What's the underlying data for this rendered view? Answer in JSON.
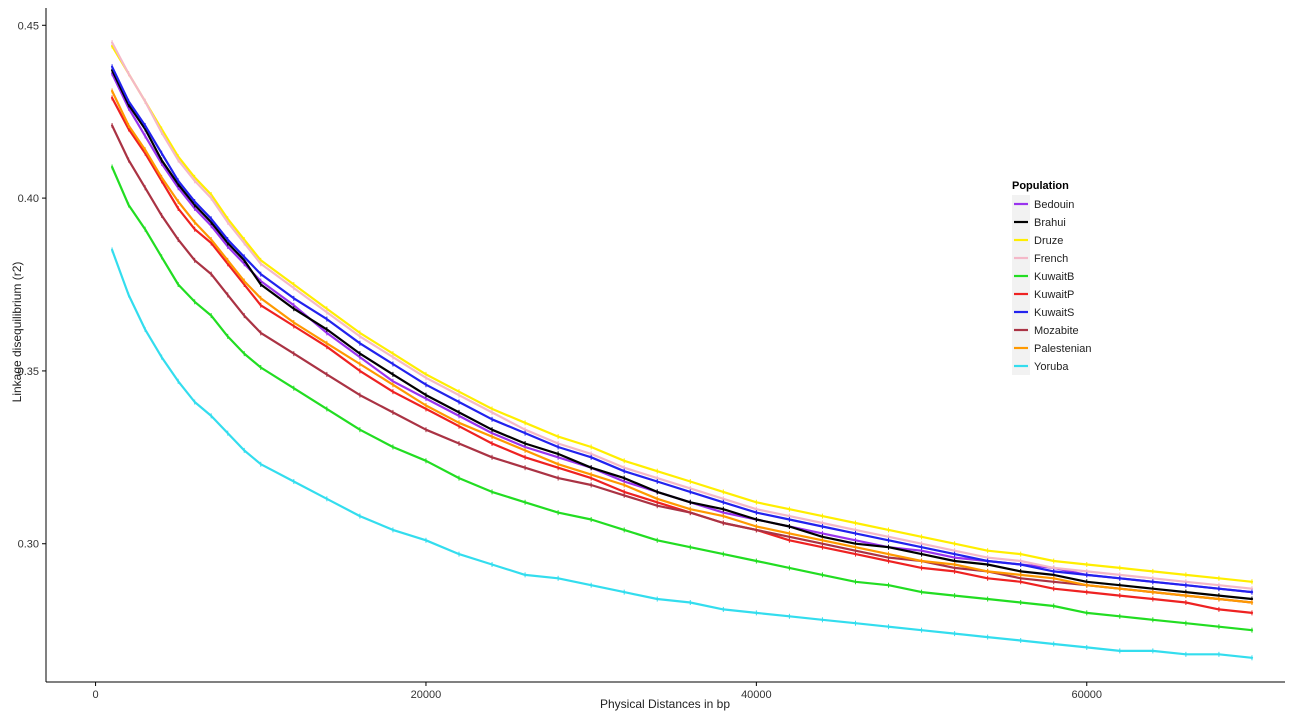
{
  "chart_data": {
    "type": "line",
    "title": "",
    "xlabel": "Physical Distances in bp",
    "ylabel": "Linkage disequilibrium (r2)",
    "xlim": [
      -3000,
      72000
    ],
    "ylim": [
      0.26,
      0.455
    ],
    "x_ticks": [
      0,
      20000,
      40000,
      60000
    ],
    "x_tick_labels": [
      "0",
      "20000",
      "40000",
      "60000"
    ],
    "y_ticks": [
      0.3,
      0.35,
      0.4,
      0.45
    ],
    "y_tick_labels": [
      "0.30",
      "0.35",
      "0.40",
      "0.45"
    ],
    "grid": false,
    "legend": {
      "title": "Population",
      "placement": "right"
    },
    "x": [
      1000,
      2000,
      3000,
      4000,
      5000,
      6000,
      7000,
      8000,
      9000,
      10000,
      12000,
      14000,
      16000,
      18000,
      20000,
      22000,
      24000,
      26000,
      28000,
      30000,
      32000,
      34000,
      36000,
      38000,
      40000,
      42000,
      44000,
      46000,
      48000,
      50000,
      52000,
      54000,
      56000,
      58000,
      60000,
      62000,
      64000,
      66000,
      68000,
      70000
    ],
    "series": [
      {
        "name": "Bedouin",
        "color": "#9933ee",
        "values": [
          0.436,
          0.426,
          0.418,
          0.41,
          0.403,
          0.397,
          0.392,
          0.386,
          0.381,
          0.376,
          0.369,
          0.361,
          0.354,
          0.347,
          0.342,
          0.337,
          0.332,
          0.328,
          0.325,
          0.322,
          0.318,
          0.315,
          0.312,
          0.309,
          0.307,
          0.305,
          0.303,
          0.301,
          0.299,
          0.298,
          0.296,
          0.295,
          0.294,
          0.293,
          0.291,
          0.29,
          0.289,
          0.288,
          0.287,
          0.286
        ]
      },
      {
        "name": "Brahui",
        "color": "#000000",
        "values": [
          0.437,
          0.427,
          0.42,
          0.411,
          0.404,
          0.398,
          0.393,
          0.387,
          0.382,
          0.375,
          0.368,
          0.362,
          0.355,
          0.349,
          0.343,
          0.338,
          0.333,
          0.329,
          0.326,
          0.322,
          0.319,
          0.315,
          0.312,
          0.31,
          0.307,
          0.305,
          0.302,
          0.3,
          0.299,
          0.297,
          0.295,
          0.294,
          0.292,
          0.291,
          0.289,
          0.288,
          0.287,
          0.286,
          0.285,
          0.284
        ]
      },
      {
        "name": "Druze",
        "color": "#ffee00",
        "values": [
          0.444,
          0.436,
          0.428,
          0.42,
          0.412,
          0.406,
          0.401,
          0.394,
          0.388,
          0.382,
          0.375,
          0.368,
          0.361,
          0.355,
          0.349,
          0.344,
          0.339,
          0.335,
          0.331,
          0.328,
          0.324,
          0.321,
          0.318,
          0.315,
          0.312,
          0.31,
          0.308,
          0.306,
          0.304,
          0.302,
          0.3,
          0.298,
          0.297,
          0.295,
          0.294,
          0.293,
          0.292,
          0.291,
          0.29,
          0.289
        ]
      },
      {
        "name": "French",
        "color": "#f4b8c8",
        "values": [
          0.445,
          0.436,
          0.428,
          0.419,
          0.411,
          0.405,
          0.4,
          0.393,
          0.387,
          0.381,
          0.374,
          0.367,
          0.36,
          0.354,
          0.348,
          0.343,
          0.338,
          0.333,
          0.329,
          0.326,
          0.322,
          0.319,
          0.316,
          0.313,
          0.31,
          0.308,
          0.306,
          0.304,
          0.302,
          0.3,
          0.298,
          0.296,
          0.295,
          0.293,
          0.292,
          0.291,
          0.29,
          0.289,
          0.288,
          0.287
        ]
      },
      {
        "name": "KuwaitB",
        "color": "#22dd22",
        "values": [
          0.409,
          0.398,
          0.391,
          0.383,
          0.375,
          0.37,
          0.366,
          0.36,
          0.355,
          0.351,
          0.345,
          0.339,
          0.333,
          0.328,
          0.324,
          0.319,
          0.315,
          0.312,
          0.309,
          0.307,
          0.304,
          0.301,
          0.299,
          0.297,
          0.295,
          0.293,
          0.291,
          0.289,
          0.288,
          0.286,
          0.285,
          0.284,
          0.283,
          0.282,
          0.28,
          0.279,
          0.278,
          0.277,
          0.276,
          0.275
        ]
      },
      {
        "name": "KuwaitP",
        "color": "#ee2222",
        "values": [
          0.429,
          0.42,
          0.413,
          0.405,
          0.397,
          0.391,
          0.387,
          0.381,
          0.375,
          0.369,
          0.363,
          0.357,
          0.35,
          0.344,
          0.339,
          0.334,
          0.329,
          0.325,
          0.322,
          0.319,
          0.315,
          0.312,
          0.309,
          0.306,
          0.304,
          0.301,
          0.299,
          0.297,
          0.295,
          0.293,
          0.292,
          0.29,
          0.289,
          0.287,
          0.286,
          0.285,
          0.284,
          0.283,
          0.281,
          0.28
        ]
      },
      {
        "name": "KuwaitS",
        "color": "#2222ee",
        "values": [
          0.438,
          0.428,
          0.421,
          0.413,
          0.405,
          0.399,
          0.394,
          0.388,
          0.383,
          0.378,
          0.371,
          0.365,
          0.358,
          0.352,
          0.346,
          0.341,
          0.336,
          0.332,
          0.328,
          0.325,
          0.321,
          0.318,
          0.315,
          0.312,
          0.309,
          0.307,
          0.305,
          0.303,
          0.301,
          0.299,
          0.297,
          0.295,
          0.294,
          0.292,
          0.291,
          0.29,
          0.289,
          0.288,
          0.287,
          0.286
        ]
      },
      {
        "name": "Mozabite",
        "color": "#aa3344",
        "values": [
          0.421,
          0.411,
          0.403,
          0.395,
          0.388,
          0.382,
          0.378,
          0.372,
          0.366,
          0.361,
          0.355,
          0.349,
          0.343,
          0.338,
          0.333,
          0.329,
          0.325,
          0.322,
          0.319,
          0.317,
          0.314,
          0.311,
          0.309,
          0.306,
          0.304,
          0.302,
          0.3,
          0.298,
          0.296,
          0.295,
          0.293,
          0.292,
          0.29,
          0.289,
          0.288,
          0.287,
          0.286,
          0.285,
          0.284,
          0.283
        ]
      },
      {
        "name": "Palestenian",
        "color": "#ff9900",
        "values": [
          0.431,
          0.421,
          0.414,
          0.406,
          0.399,
          0.393,
          0.388,
          0.382,
          0.376,
          0.371,
          0.364,
          0.358,
          0.352,
          0.346,
          0.34,
          0.335,
          0.331,
          0.327,
          0.323,
          0.32,
          0.317,
          0.313,
          0.31,
          0.308,
          0.305,
          0.303,
          0.301,
          0.299,
          0.297,
          0.295,
          0.294,
          0.292,
          0.291,
          0.29,
          0.288,
          0.287,
          0.286,
          0.285,
          0.284,
          0.283
        ]
      },
      {
        "name": "Yoruba",
        "color": "#33ddee",
        "values": [
          0.385,
          0.372,
          0.362,
          0.354,
          0.347,
          0.341,
          0.337,
          0.332,
          0.327,
          0.323,
          0.318,
          0.313,
          0.308,
          0.304,
          0.301,
          0.297,
          0.294,
          0.291,
          0.29,
          0.288,
          0.286,
          0.284,
          0.283,
          0.281,
          0.28,
          0.279,
          0.278,
          0.277,
          0.276,
          0.275,
          0.274,
          0.273,
          0.272,
          0.271,
          0.27,
          0.269,
          0.269,
          0.268,
          0.268,
          0.267
        ]
      }
    ]
  }
}
